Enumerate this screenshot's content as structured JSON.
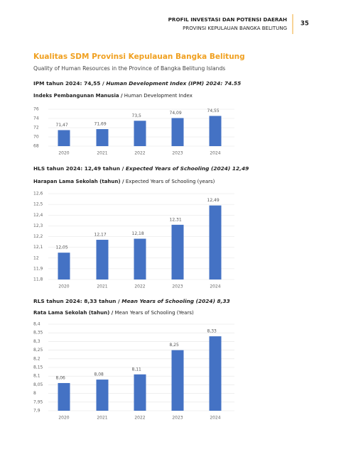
{
  "header": {
    "title": "PROFIL INVESTASI DAN POTENSI DAERAH",
    "subtitle": "PROVINSI KEPULAUAN BANGKA BELITUNG",
    "page_number": "35"
  },
  "section": {
    "title": "Kualitas SDM Provinsi Kepulauan Bangka Belitung",
    "subtitle": "Quality of Human Resources in the Province of Bangka Belitung Islands"
  },
  "chart_data": [
    {
      "type": "bar",
      "heading_id": "IPM tahun 2024: 74,55 /",
      "heading_en": "Human Development Index (IPM) 2024: 74.55",
      "title_id": "Indeks Pembangunan Manusia /",
      "title_en": "Human Development Index",
      "categories": [
        "2020",
        "2021",
        "2022",
        "2023",
        "2024"
      ],
      "values": [
        71.47,
        71.69,
        73.5,
        74.09,
        74.55
      ],
      "value_labels": [
        "71,47",
        "71,69",
        "73,5",
        "74,09",
        "74,55"
      ],
      "color": "#4472c4",
      "ylim": [
        68,
        76
      ],
      "yticks": [
        68,
        70,
        72,
        74,
        76
      ],
      "grid": true
    },
    {
      "type": "bar",
      "heading_id": "HLS tahun 2024: 12,49 tahun /",
      "heading_en": "Expected Years of Schooling (2024) 12,49",
      "title_id": "Harapan Lama Sekolah (tahun) /",
      "title_en": "Expected Years of Schooling (years)",
      "categories": [
        "2020",
        "2021",
        "2022",
        "2023",
        "2024"
      ],
      "values": [
        12.05,
        12.17,
        12.18,
        12.31,
        12.49
      ],
      "value_labels": [
        "12,05",
        "12,17",
        "12,18",
        "12,31",
        "12,49"
      ],
      "color": "#4472c4",
      "ylim": [
        11.8,
        12.6
      ],
      "yticks": [
        {
          "value": 11.8,
          "label": "11,8"
        },
        {
          "value": 11.9,
          "label": "11,9"
        },
        12,
        {
          "value": 12.1,
          "label": "12,1"
        },
        {
          "value": 12.2,
          "label": "12,2"
        },
        {
          "value": 12.3,
          "label": "12,3"
        },
        {
          "value": 12.4,
          "label": "12,4"
        },
        {
          "value": 12.5,
          "label": "12,5"
        },
        {
          "value": 12.6,
          "label": "12,6"
        }
      ],
      "grid": true
    },
    {
      "type": "bar",
      "heading_id": "RLS tahun 2024: 8,33 tahun /",
      "heading_en": "Mean Years of Schooling (2024) 8,33",
      "title_id": "Rata Lama Sekolah (tahun) /",
      "title_en": "Mean Years of Schooling (Years)",
      "categories": [
        "2020",
        "2021",
        "2022",
        "2023",
        "2024"
      ],
      "values": [
        8.06,
        8.08,
        8.11,
        8.25,
        8.33
      ],
      "value_labels": [
        "8,06",
        "8,08",
        "8,11",
        "8,25",
        "8,33"
      ],
      "color": "#4472c4",
      "ylim": [
        7.9,
        8.4
      ],
      "yticks": [
        {
          "value": 7.9,
          "label": "7,9"
        },
        {
          "value": 7.95,
          "label": "7,95"
        },
        8,
        {
          "value": 8.05,
          "label": "8,05"
        },
        {
          "value": 8.1,
          "label": "8,1"
        },
        {
          "value": 8.15,
          "label": "8,15"
        },
        {
          "value": 8.2,
          "label": "8,2"
        },
        {
          "value": 8.25,
          "label": "8,25"
        },
        {
          "value": 8.3,
          "label": "8,3"
        },
        {
          "value": 8.35,
          "label": "8,35"
        },
        {
          "value": 8.4,
          "label": "8,4"
        }
      ],
      "grid": true
    }
  ]
}
